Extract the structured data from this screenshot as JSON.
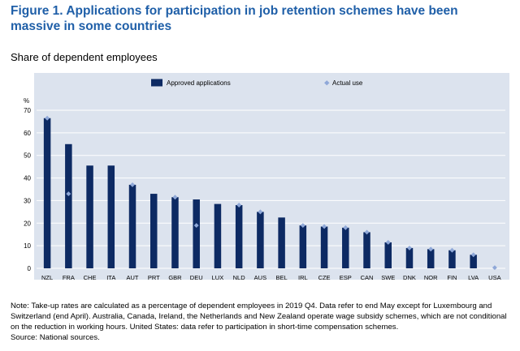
{
  "figure": {
    "title": "Figure 1. Applications for participation in job retention schemes have been massive in some countries",
    "subtitle": "Share of dependent employees"
  },
  "chart_data": {
    "type": "bar",
    "title": "",
    "ylabel": "%",
    "xlabel": "",
    "ylim": [
      0,
      70
    ],
    "yticks": [
      0,
      10,
      20,
      30,
      40,
      50,
      60,
      70
    ],
    "grid": "horizontal",
    "legend_position": "top",
    "categories": [
      "NZL",
      "FRA",
      "CHE",
      "ITA",
      "AUT",
      "PRT",
      "GBR",
      "DEU",
      "LUX",
      "NLD",
      "AUS",
      "BEL",
      "IRL",
      "CZE",
      "ESP",
      "CAN",
      "SWE",
      "DNK",
      "NOR",
      "FIN",
      "LVA",
      "USA"
    ],
    "series": [
      {
        "name": "Approved applications",
        "kind": "bar",
        "color": "#0d2a63",
        "values": [
          66.5,
          55,
          45.5,
          45.5,
          37,
          33,
          31.5,
          30.5,
          28.5,
          28,
          25,
          22.5,
          19,
          18.5,
          18,
          16,
          11.5,
          9,
          8.5,
          8,
          6,
          0
        ]
      },
      {
        "name": "Actual use",
        "kind": "marker",
        "color": "#8fa8d8",
        "values": [
          66.5,
          33,
          null,
          null,
          37,
          null,
          31.5,
          19,
          null,
          28,
          25,
          null,
          19,
          18.5,
          18,
          16,
          11.5,
          9,
          8.5,
          8,
          6,
          0.3
        ]
      }
    ]
  },
  "notes": {
    "note": "Note: Take-up rates are calculated as a percentage of dependent employees in 2019 Q4. Data refer to end May except for Luxembourg and Switzerland (end April). Australia, Canada, Ireland, the Netherlands and New Zealand operate wage subsidy schemes, which are not conditional on the reduction in working hours. United States: data refer to participation in short-time compensation schemes.",
    "source": "Source: National sources."
  }
}
